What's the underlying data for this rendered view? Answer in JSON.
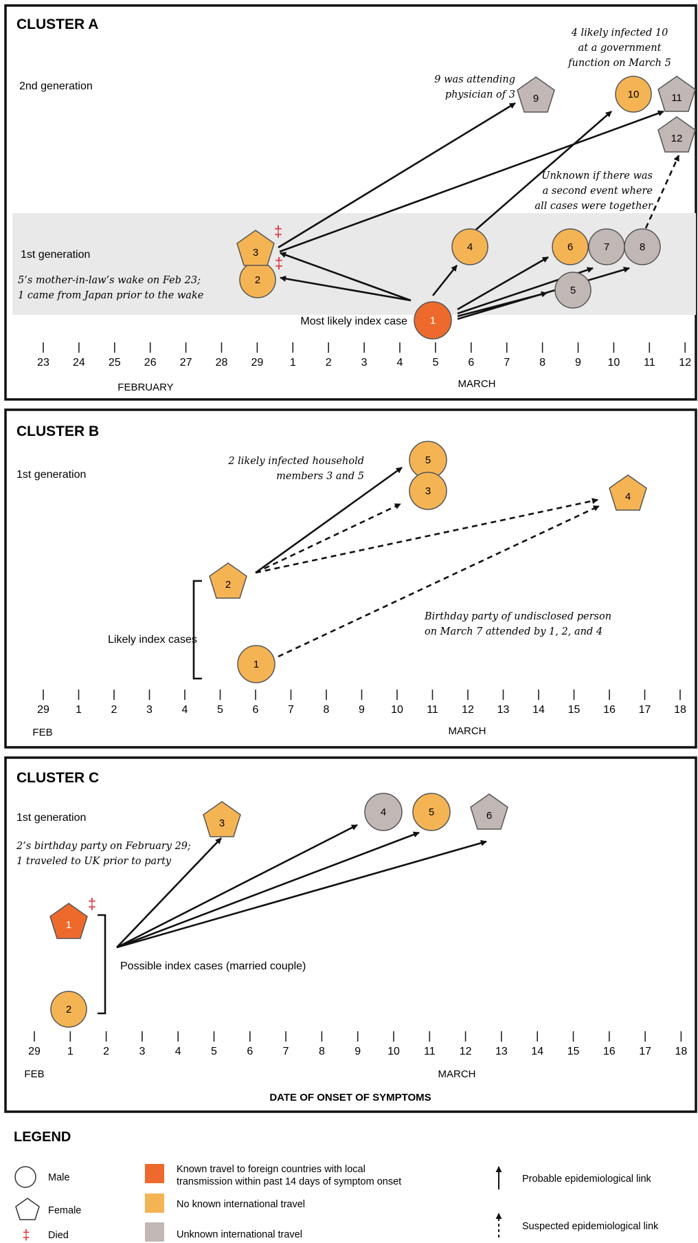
{
  "colors": {
    "travel": "#ee6a2c",
    "no_travel": "#f5b454",
    "unknown": "#c1b8b6",
    "died": "#d8262c",
    "band": "#e9e9e9",
    "edge": "#555555"
  },
  "clusters": [
    {
      "title": "CLUSTER A",
      "gen2_label": "2nd generation",
      "gen1_label": "1st generation",
      "dates": [
        "23",
        "24",
        "25",
        "26",
        "27",
        "28",
        "29",
        "1",
        "2",
        "3",
        "4",
        "5",
        "6",
        "7",
        "8",
        "9",
        "10",
        "11",
        "12"
      ],
      "months": [
        "FEBRUARY",
        "MARCH"
      ],
      "notes": [
        "9 was attending",
        "physician of 3",
        "4 likely infected 10",
        "at a government",
        "function on March 5",
        "Unknown if there was",
        "a second event where",
        "all cases were together",
        "5’s mother-in-law’s wake on Feb 23;",
        "1 came from Japan prior to the wake",
        "Most likely index case"
      ],
      "cases": [
        {
          "id": "1",
          "shape": "circle",
          "travel": "travel",
          "died": false
        },
        {
          "id": "2",
          "shape": "circle",
          "travel": "no_travel",
          "died": true
        },
        {
          "id": "3",
          "shape": "pentagon",
          "travel": "no_travel",
          "died": true
        },
        {
          "id": "4",
          "shape": "circle",
          "travel": "no_travel",
          "died": false
        },
        {
          "id": "5",
          "shape": "circle",
          "travel": "unknown",
          "died": false
        },
        {
          "id": "6",
          "shape": "circle",
          "travel": "no_travel",
          "died": false
        },
        {
          "id": "7",
          "shape": "circle",
          "travel": "unknown",
          "died": false
        },
        {
          "id": "8",
          "shape": "circle",
          "travel": "unknown",
          "died": false
        },
        {
          "id": "9",
          "shape": "pentagon",
          "travel": "unknown",
          "died": false
        },
        {
          "id": "10",
          "shape": "circle",
          "travel": "no_travel",
          "died": false
        },
        {
          "id": "11",
          "shape": "pentagon",
          "travel": "unknown",
          "died": false
        },
        {
          "id": "12",
          "shape": "pentagon",
          "travel": "unknown",
          "died": false
        }
      ],
      "links": [
        {
          "from": "1",
          "to": "2",
          "type": "probable"
        },
        {
          "from": "1",
          "to": "3",
          "type": "probable"
        },
        {
          "from": "1",
          "to": "4",
          "type": "probable"
        },
        {
          "from": "1",
          "to": "5",
          "type": "probable"
        },
        {
          "from": "1",
          "to": "6",
          "type": "probable"
        },
        {
          "from": "1",
          "to": "7",
          "type": "probable"
        },
        {
          "from": "1",
          "to": "8",
          "type": "probable"
        },
        {
          "from": "3",
          "to": "9",
          "type": "probable"
        },
        {
          "from": "3",
          "to": "11",
          "type": "probable"
        },
        {
          "from": "4",
          "to": "10",
          "type": "probable"
        },
        {
          "from": "8",
          "to": "12",
          "type": "suspected"
        }
      ]
    },
    {
      "title": "CLUSTER B",
      "gen1_label": "1st generation",
      "dates": [
        "29",
        "1",
        "2",
        "3",
        "4",
        "5",
        "6",
        "7",
        "8",
        "9",
        "10",
        "11",
        "12",
        "13",
        "14",
        "15",
        "16",
        "17",
        "18"
      ],
      "months": [
        "FEB",
        "MARCH"
      ],
      "notes": [
        "2 likely infected household",
        "members 3 and 5",
        "Birthday party of undisclosed person",
        "on March 7 attended by 1, 2, and 4",
        "Likely index cases"
      ],
      "cases": [
        {
          "id": "1",
          "shape": "circle",
          "travel": "no_travel",
          "died": false
        },
        {
          "id": "2",
          "shape": "pentagon",
          "travel": "no_travel",
          "died": false
        },
        {
          "id": "3",
          "shape": "circle",
          "travel": "no_travel",
          "died": false
        },
        {
          "id": "4",
          "shape": "pentagon",
          "travel": "no_travel",
          "died": false
        },
        {
          "id": "5",
          "shape": "circle",
          "travel": "no_travel",
          "died": false
        }
      ],
      "links": [
        {
          "from": "2",
          "to": "5",
          "type": "probable"
        },
        {
          "from": "2",
          "to": "3",
          "type": "suspected"
        },
        {
          "from": "2",
          "to": "4",
          "type": "suspected"
        },
        {
          "from": "1",
          "to": "4",
          "type": "suspected"
        }
      ]
    },
    {
      "title": "CLUSTER C",
      "gen1_label": "1st generation",
      "dates": [
        "29",
        "1",
        "2",
        "3",
        "4",
        "5",
        "6",
        "7",
        "8",
        "9",
        "10",
        "11",
        "12",
        "13",
        "14",
        "15",
        "16",
        "17",
        "18"
      ],
      "months": [
        "FEB",
        "MARCH"
      ],
      "axis_title": "DATE OF ONSET OF SYMPTOMS",
      "notes": [
        "2’s birthday party on February 29;",
        "1 traveled to UK prior to party",
        "Possible index cases (married couple)"
      ],
      "cases": [
        {
          "id": "1",
          "shape": "pentagon",
          "travel": "travel",
          "died": true
        },
        {
          "id": "2",
          "shape": "circle",
          "travel": "no_travel",
          "died": false
        },
        {
          "id": "3",
          "shape": "pentagon",
          "travel": "no_travel",
          "died": false
        },
        {
          "id": "4",
          "shape": "circle",
          "travel": "unknown",
          "died": false
        },
        {
          "id": "5",
          "shape": "circle",
          "travel": "no_travel",
          "died": false
        },
        {
          "id": "6",
          "shape": "pentagon",
          "travel": "unknown",
          "died": false
        }
      ],
      "links": [
        {
          "from": "index",
          "to": "3",
          "type": "probable"
        },
        {
          "from": "index",
          "to": "4",
          "type": "probable"
        },
        {
          "from": "index",
          "to": "5",
          "type": "probable"
        },
        {
          "from": "index",
          "to": "6",
          "type": "probable"
        }
      ]
    }
  ],
  "legend": {
    "title": "LEGEND",
    "male": "Male",
    "female": "Female",
    "died": "Died",
    "died_symbol": "‡",
    "travel_known_1": "Known travel to foreign countries with local",
    "travel_known_2": "transmission within past 14 days of symptom onset",
    "travel_none": "No known international travel",
    "travel_unknown": "Unknown international travel",
    "probable": "Probable epidemiological link",
    "suspected": "Suspected epidemiological link"
  }
}
